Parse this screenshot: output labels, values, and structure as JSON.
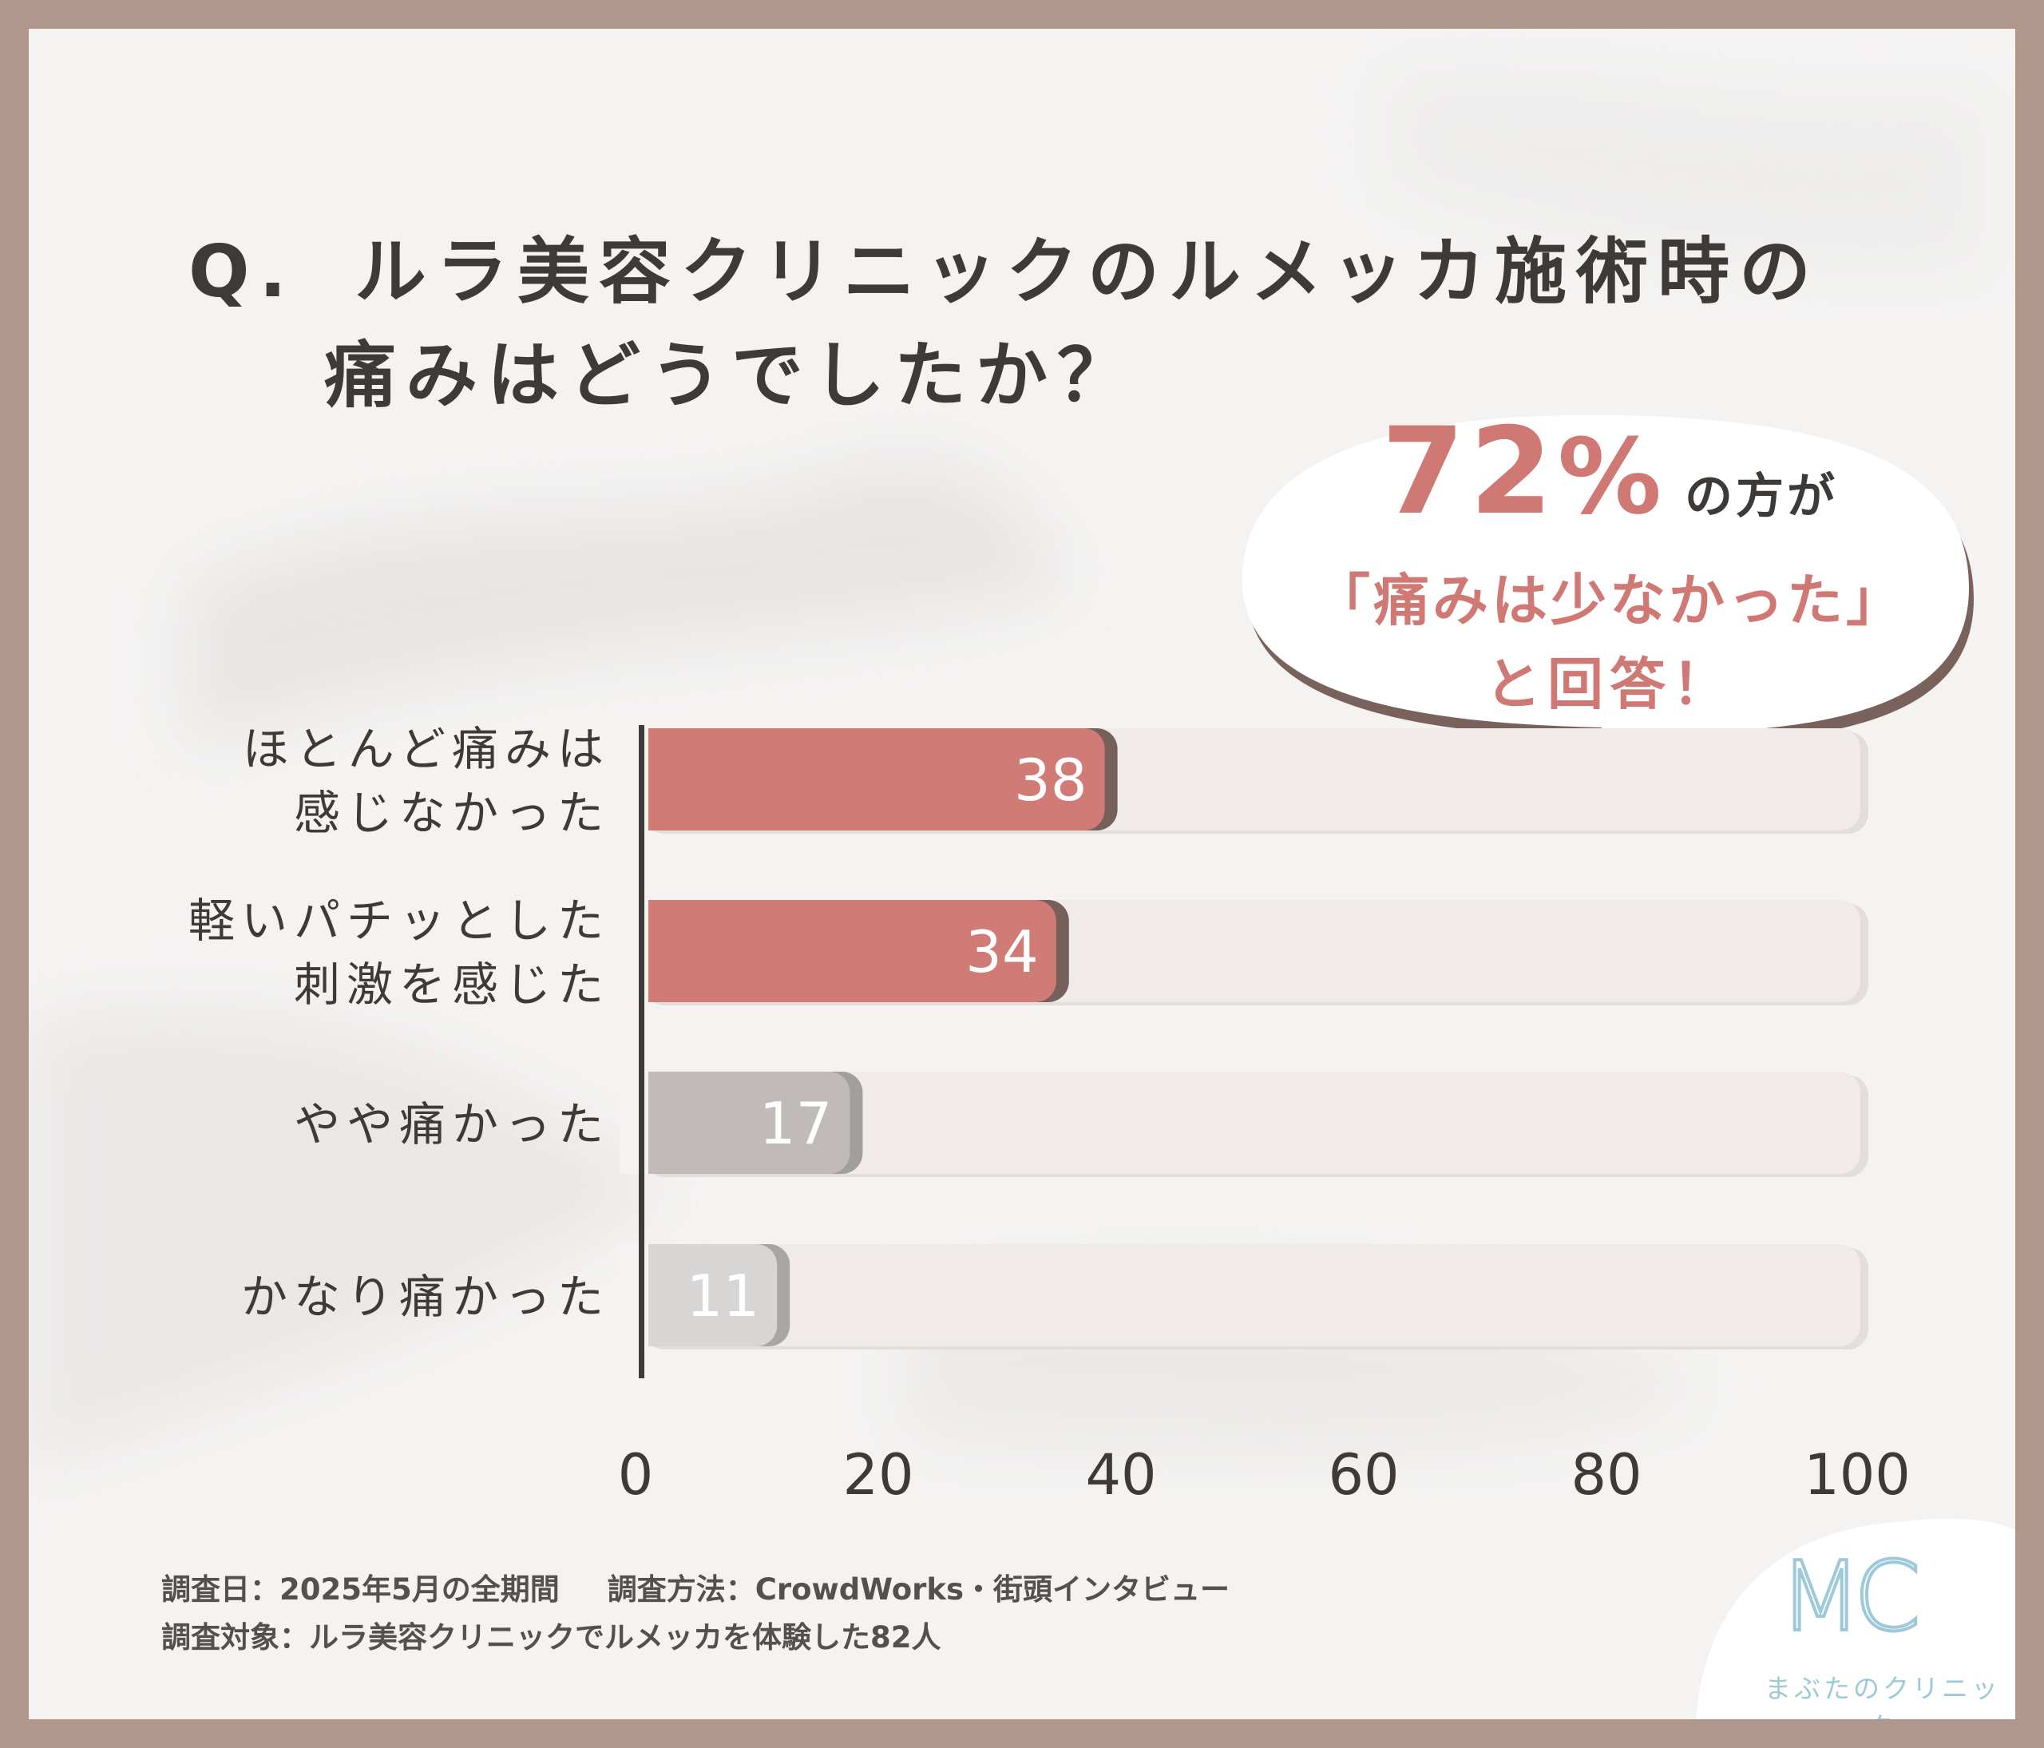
{
  "title": {
    "q_prefix": "Q.",
    "line1": "ルラ美容クリニックのルメッカ施術時の",
    "line2": "痛みはどうでしたか？"
  },
  "callout": {
    "percent_value": "72",
    "percent_sign": "%",
    "suffix": "の方が",
    "line2": "「痛みは少なかった」",
    "line3": "と回答！"
  },
  "chart_data": {
    "type": "bar",
    "orientation": "horizontal",
    "categories": [
      [
        "ほとんど痛みは",
        "感じなかった"
      ],
      [
        "軽いパチッとした",
        "刺激を感じた"
      ],
      [
        "やや痛かった"
      ],
      [
        "かなり痛かった"
      ]
    ],
    "values": [
      38,
      34,
      17,
      11
    ],
    "xlim": [
      0,
      100
    ],
    "x_ticks": [
      "0",
      "20",
      "40",
      "60",
      "80",
      "100"
    ],
    "bar_colors": [
      "#d17b76",
      "#d17b76",
      "#c0bbb9",
      "#d8d6d5"
    ],
    "bar_shadow_colors": [
      "#76605a",
      "#76605a",
      "#a19e9c",
      "#a8a5a3"
    ],
    "track_color": "#f0ebe9",
    "grid": false,
    "legend": "none"
  },
  "footer": {
    "line1_a": "調査日：2025年5月の全期間",
    "line1_b": "調査方法：CrowdWorks・街頭インタビュー",
    "line2": "調査対象：ルラ美容クリニックでルメッカを体験した82人"
  },
  "logo": {
    "mark": "MC",
    "name": "まぶたのクリニック",
    "color": "#9dcad9"
  }
}
